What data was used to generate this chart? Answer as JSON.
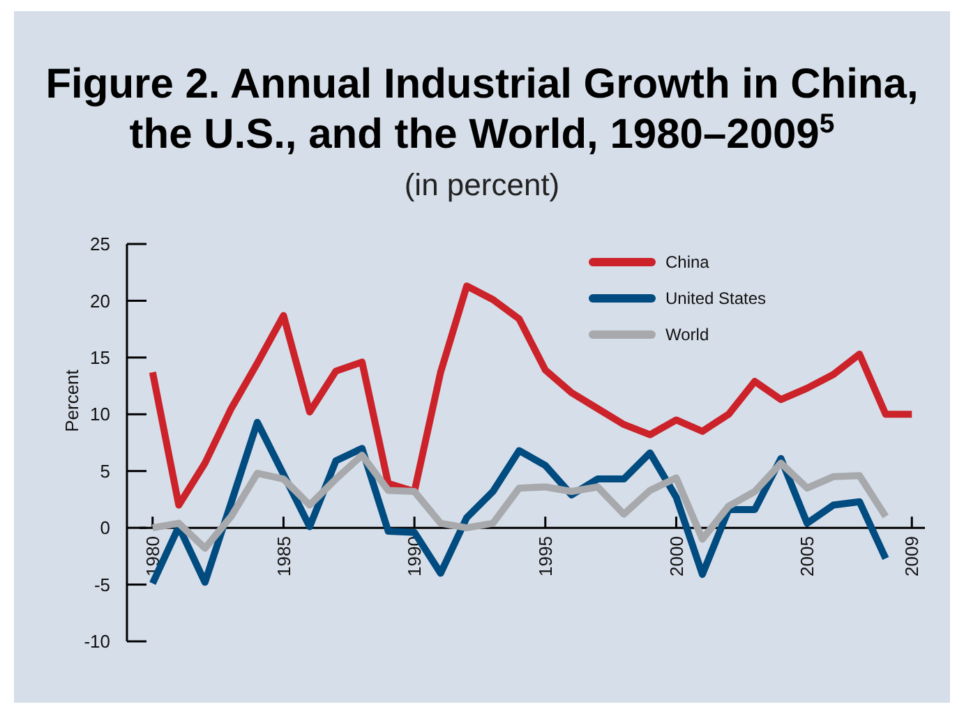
{
  "chart_data": {
    "type": "line",
    "title": "Figure 2. Annual Industrial Growth in China, the U.S., and the World, 1980–2009$^{5}$",
    "subtitle": "(in percent)",
    "ylabel": "Percent",
    "x": [
      1980,
      1981,
      1982,
      1983,
      1984,
      1985,
      1986,
      1987,
      1988,
      1989,
      1990,
      1991,
      1992,
      1993,
      1994,
      1995,
      1996,
      1997,
      1998,
      1999,
      2000,
      2001,
      2002,
      2003,
      2004,
      2005,
      2006,
      2007,
      2008,
      2009
    ],
    "series": [
      {
        "name": "China",
        "color": "#cc2229",
        "values": [
          13.7,
          2,
          5.7,
          10.5,
          14.5,
          18.7,
          10.2,
          13.8,
          14.6,
          3.9,
          3.2,
          13.7,
          21.3,
          20.1,
          18.4,
          13.9,
          11.9,
          10.5,
          9.1,
          8.2,
          9.5,
          8.5,
          10,
          12.9,
          11.3,
          12.3,
          13.5,
          15.3,
          10,
          10
        ]
      },
      {
        "name": "United States",
        "color": "#004b7f",
        "values": [
          -4.9,
          0.1,
          -4.8,
          2.2,
          9.3,
          4.7,
          0.1,
          5.9,
          7,
          -0.3,
          -0.4,
          -4,
          0.9,
          3.2,
          6.8,
          5.5,
          2.9,
          4.3,
          4.3,
          6.6,
          2.7,
          -4.1,
          1.6,
          1.6,
          6.1,
          0.4,
          2,
          2.3,
          -2.7,
          null
        ]
      },
      {
        "name": "World",
        "color": "#a7a9ac",
        "values": [
          0,
          0.4,
          -1.8,
          1,
          4.8,
          4.3,
          2,
          4.3,
          6.4,
          3.3,
          3.2,
          0.4,
          0,
          0.4,
          3.5,
          3.6,
          3.2,
          3.6,
          1.2,
          3.3,
          4.4,
          -1,
          1.9,
          3.2,
          5.7,
          3.5,
          4.5,
          4.6,
          1,
          null
        ]
      }
    ],
    "xlim": [
      1979.5,
      2009.5
    ],
    "xticks": [
      1980,
      1985,
      1990,
      1995,
      2000,
      2005,
      2009
    ],
    "ylim": [
      -10,
      25
    ],
    "yticks": [
      -10,
      -5,
      0,
      5,
      10,
      15,
      20,
      25
    ],
    "grid": false,
    "legend": "top right",
    "marker": "none",
    "line_style": "solid"
  }
}
